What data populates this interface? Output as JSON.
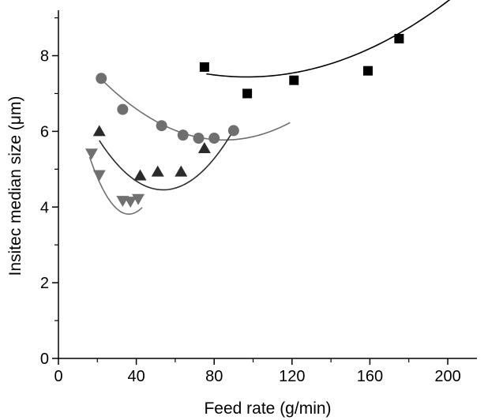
{
  "chart_data": {
    "type": "scatter",
    "xlabel": "Feed rate (g/min)",
    "ylabel": "Insitec median size (μm)",
    "xlim": [
      0,
      215
    ],
    "ylim": [
      0,
      9.2
    ],
    "x_ticks": [
      0,
      40,
      80,
      120,
      160,
      200
    ],
    "y_ticks": [
      0,
      2,
      4,
      6,
      8
    ],
    "x_tick_labels": [
      "0",
      "40",
      "80",
      "120",
      "160",
      "200"
    ],
    "y_tick_labels": [
      "0",
      "2",
      "4",
      "6",
      "8"
    ],
    "grid": false,
    "legend": "none",
    "series": [
      {
        "marker": "square",
        "color": "#000000",
        "points": [
          [
            75,
            7.7
          ],
          [
            97,
            7.0
          ],
          [
            121,
            7.35
          ],
          [
            159,
            7.6
          ],
          [
            175,
            8.45
          ]
        ],
        "fit_color": "#000000",
        "fit_x_range": [
          76,
          207
        ],
        "fit_coefficients": [
          9.2,
          -0.0364,
          0.000188
        ]
      },
      {
        "marker": "circle",
        "color": "#6f6f6f",
        "points": [
          [
            22,
            7.4
          ],
          [
            33,
            6.58
          ],
          [
            53,
            6.15
          ],
          [
            64,
            5.9
          ],
          [
            72,
            5.82
          ],
          [
            80,
            5.82
          ],
          [
            90,
            6.02
          ]
        ],
        "fit_color": "#6f6f6f",
        "fit_x_range": [
          22,
          119
        ],
        "fit_coefficients": [
          8.69,
          -0.0685,
          0.000402
        ]
      },
      {
        "marker": "triangle-up",
        "color": "#2b2b2b",
        "points": [
          [
            21,
            6.0
          ],
          [
            42,
            4.83
          ],
          [
            51,
            4.93
          ],
          [
            63,
            4.93
          ],
          [
            75,
            5.55
          ]
        ],
        "fit_color": "#2b2b2b",
        "fit_x_range": [
          21,
          89
        ],
        "fit_coefficients": [
          7.96,
          -0.1302,
          0.001209
        ]
      },
      {
        "marker": "triangle-down",
        "color": "#707070",
        "points": [
          [
            17,
            5.42
          ],
          [
            21,
            4.85
          ],
          [
            33,
            4.17
          ],
          [
            37,
            4.15
          ],
          [
            41,
            4.22
          ]
        ],
        "fit_color": "#707070",
        "fit_x_range": [
          16,
          43
        ],
        "fit_coefficients": [
          8.67,
          -0.2686,
          0.003714
        ]
      }
    ]
  }
}
